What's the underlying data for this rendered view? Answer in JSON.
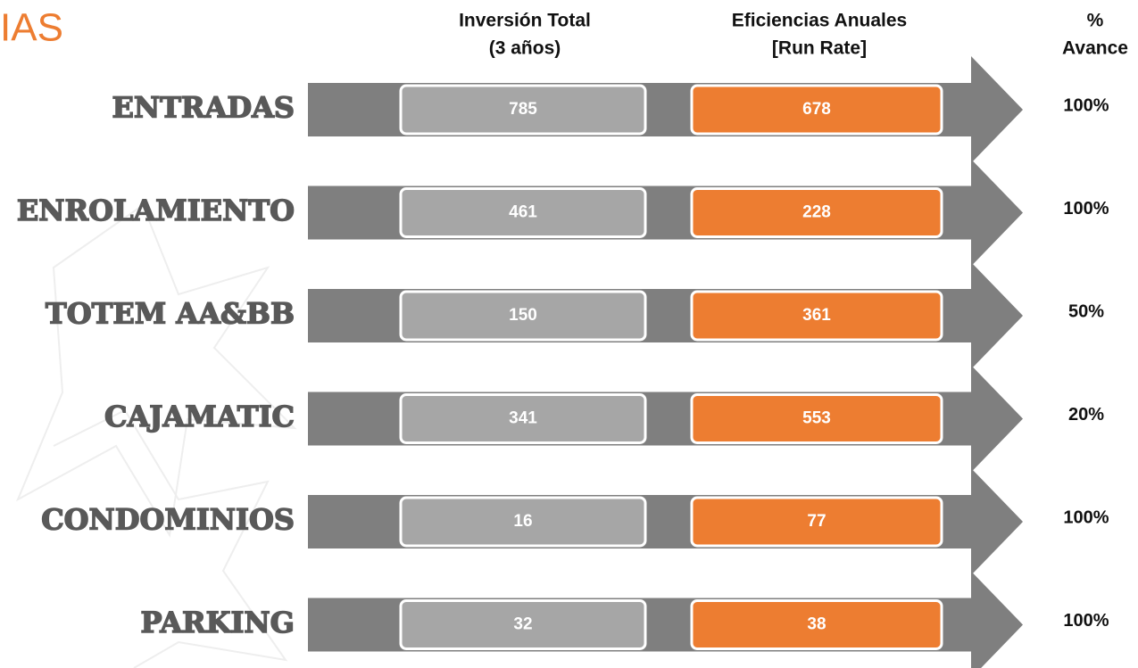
{
  "title": "IAS",
  "headers": [
    [
      "Inversión Total",
      "(3 años)"
    ],
    [
      "Eficiencias Anuales",
      "[Run Rate]"
    ],
    [
      "%",
      "Avance"
    ]
  ],
  "rows": [
    {
      "name": "ENTRADAS",
      "inversion": "785",
      "eficiencia": "678",
      "avance": "100%"
    },
    {
      "name": "ENROLAMIENTO",
      "inversion": "461",
      "eficiencia": "228",
      "avance": "100%"
    },
    {
      "name": "TOTEM AA&BB",
      "inversion": "150",
      "eficiencia": "361",
      "avance": "50%"
    },
    {
      "name": "CAJAMATIC",
      "inversion": "341",
      "eficiencia": "553",
      "avance": "20%"
    },
    {
      "name": "CONDOMINIOS",
      "inversion": "16",
      "eficiencia": "77",
      "avance": "100%"
    },
    {
      "name": "PARKING",
      "inversion": "32",
      "eficiencia": "38",
      "avance": "100%"
    }
  ]
}
